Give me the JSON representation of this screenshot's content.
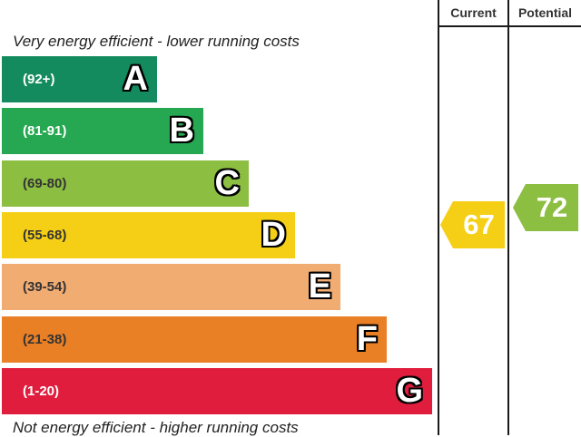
{
  "chart_data": {
    "type": "bar",
    "columns": {
      "current": "Current",
      "potential": "Potential"
    },
    "captions": {
      "top": "Very energy efficient - lower running costs",
      "bottom": "Not energy efficient - higher running costs"
    },
    "bands": [
      {
        "letter": "A",
        "range": "(92+)",
        "min": 92,
        "max": 100,
        "color": "#138b5e",
        "text_color": "#ffffff"
      },
      {
        "letter": "B",
        "range": "(81-91)",
        "min": 81,
        "max": 91,
        "color": "#25a851",
        "text_color": "#ffffff"
      },
      {
        "letter": "C",
        "range": "(69-80)",
        "min": 69,
        "max": 80,
        "color": "#8cbe42",
        "text_color": "#333333"
      },
      {
        "letter": "D",
        "range": "(55-68)",
        "min": 55,
        "max": 68,
        "color": "#f5cf16",
        "text_color": "#333333"
      },
      {
        "letter": "E",
        "range": "(39-54)",
        "min": 39,
        "max": 54,
        "color": "#f1ac72",
        "text_color": "#333333"
      },
      {
        "letter": "F",
        "range": "(21-38)",
        "min": 21,
        "max": 38,
        "color": "#ea8026",
        "text_color": "#333333"
      },
      {
        "letter": "G",
        "range": "(1-20)",
        "min": 1,
        "max": 20,
        "color": "#e11d3e",
        "text_color": "#ffffff"
      }
    ],
    "current": {
      "value": 67,
      "band": "D",
      "color": "#f5cf16"
    },
    "potential": {
      "value": 72,
      "band": "C",
      "color": "#8cbe42"
    }
  }
}
